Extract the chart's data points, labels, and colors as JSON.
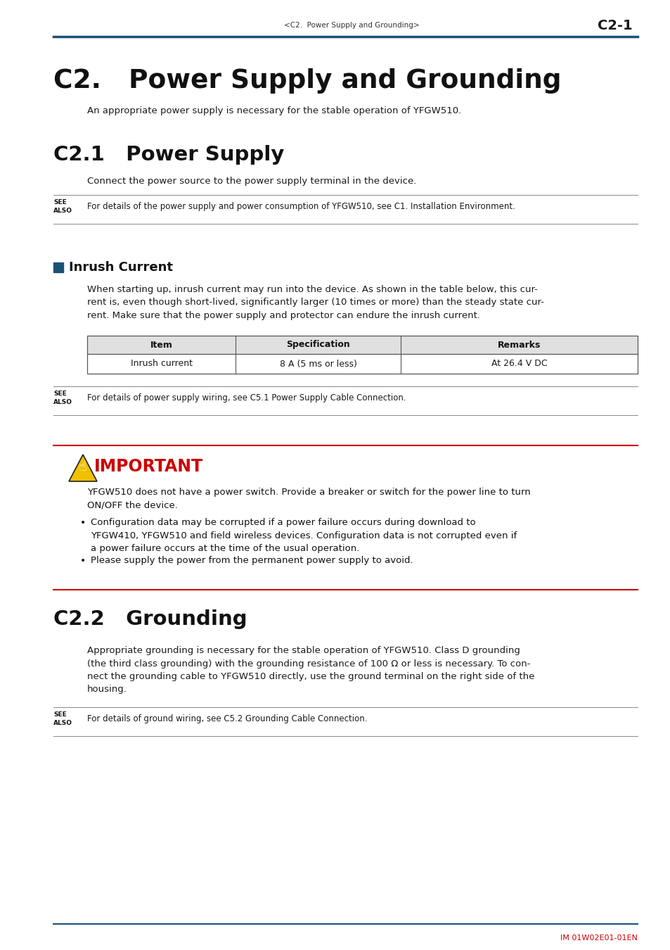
{
  "page_header_left": "<C2.  Power Supply and Grounding>",
  "page_header_right": "C2-1",
  "header_line_color": "#1a5276",
  "main_title": "C2.   Power Supply and Grounding",
  "main_subtitle": "An appropriate power supply is necessary for the stable operation of YFGW510.",
  "section1_title": "C2.1   Power Supply",
  "section1_subtitle": "Connect the power source to the power supply terminal in the device.",
  "see_also_1_text": "For details of the power supply and power consumption of YFGW510, see C1. Installation Environment.",
  "inrush_title": "Inrush Current",
  "inrush_body": "When starting up, inrush current may run into the device. As shown in the table below, this cur-\nrent is, even though short-lived, significantly larger (10 times or more) than the steady state cur-\nrent. Make sure that the power supply and protector can endure the inrush current.",
  "table_headers": [
    "Item",
    "Specification",
    "Remarks"
  ],
  "table_row": [
    "Inrush current",
    "8 A (5 ms or less)",
    "At 26.4 V DC"
  ],
  "see_also_2_text": "For details of power supply wiring, see C5.1 Power Supply Cable Connection.",
  "important_title": "IMPORTANT",
  "important_color": "#cc0000",
  "important_body1": "YFGW510 does not have a power switch. Provide a breaker or switch for the power line to turn\nON/OFF the device.",
  "important_bullet1": "Configuration data may be corrupted if a power failure occurs during download to\nYFGW410, YFGW510 and field wireless devices. Configuration data is not corrupted even if\na power failure occurs at the time of the usual operation.",
  "important_bullet2": "Please supply the power from the permanent power supply to avoid.",
  "section2_title": "C2.2   Grounding",
  "section2_body": "Appropriate grounding is necessary for the stable operation of YFGW510. Class D grounding\n(the third class grounding) with the grounding resistance of 100 Ω or less is necessary. To con-\nnect the grounding cable to YFGW510 directly, use the ground terminal on the right side of the\nhousing.",
  "see_also_3_text": "For details of ground wiring, see C5.2 Grounding Cable Connection.",
  "footer_text": "IM 01W02E01-01EN",
  "footer_color": "#cc0000",
  "bg_color": "#ffffff",
  "text_color": "#1a1a1a",
  "blue_color": "#1a5276",
  "inrush_square_color": "#1a5276",
  "lm": 76,
  "rm": 907,
  "bm": 124
}
